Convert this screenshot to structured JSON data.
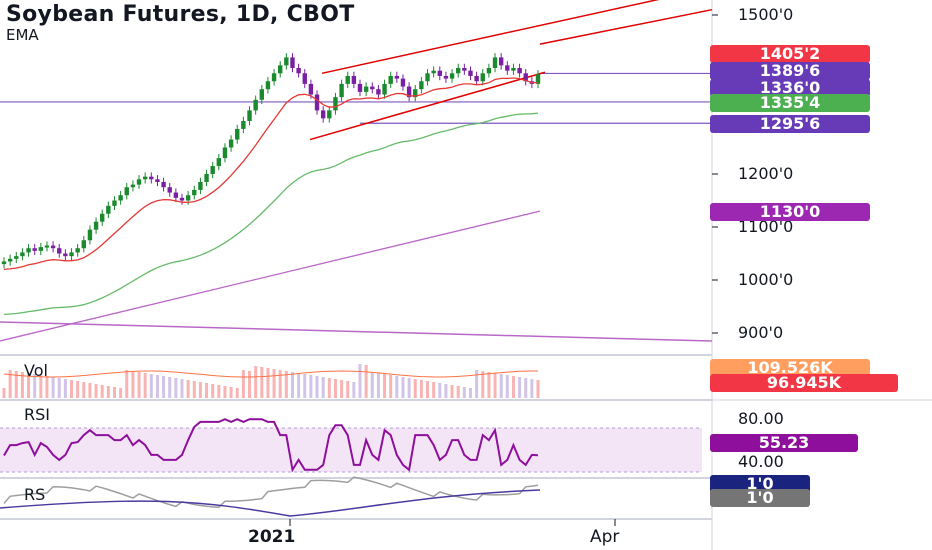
{
  "header": {
    "title": "Soybean Futures, 1D, CBOT",
    "subtitle": "EMA"
  },
  "colors": {
    "up": "#1b8a2e",
    "down": "#7b1fa2",
    "ema_fast": "#e53935",
    "ema_slow": "#66bb6a",
    "ema_long": "#ba68c8",
    "channel": "#e00000",
    "hline": "#7e57c2",
    "rsi_line": "#8e0f9c",
    "rs_line": "#9e9e9e",
    "rs_avg": "#4a3aa0"
  },
  "price_axis": {
    "ticks": [
      {
        "value": 1500,
        "label": "1500'0"
      },
      {
        "value": 1200,
        "label": "1200'0"
      },
      {
        "value": 1100,
        "label": "1100'0"
      },
      {
        "value": 1000,
        "label": "1000'0"
      },
      {
        "value": 900,
        "label": "900'0"
      }
    ]
  },
  "badges": [
    {
      "value": 1405.25,
      "label": "1405'2",
      "color": "#f23645"
    },
    {
      "value": 1389.75,
      "label": "1389'6",
      "color": "#673ab7"
    },
    {
      "value": 1336.0,
      "label": "1336'0",
      "color": "#673ab7"
    },
    {
      "value": 1335.5,
      "label": "1335'4",
      "color": "#4caf50"
    },
    {
      "value": 1295.75,
      "label": "1295'6",
      "color": "#673ab7"
    },
    {
      "value": 1130.0,
      "label": "1130'0",
      "color": "#9c27b0"
    }
  ],
  "volume_panel": {
    "label": "Vol",
    "badges": [
      {
        "label": "109.526K",
        "color": "#ff9e5e"
      },
      {
        "label": "96.945K",
        "color": "#f23645"
      }
    ]
  },
  "rsi_panel": {
    "label": "RSI",
    "ticks": [
      {
        "value": 80,
        "label": "80.00"
      },
      {
        "value": 40,
        "label": "40.00"
      }
    ],
    "badge": {
      "value": 55.23,
      "label": "55.23",
      "color": "#8e0f9c"
    }
  },
  "rs_panel": {
    "label": "RS",
    "badges": [
      {
        "label": "1'0",
        "color": "#1a237e"
      },
      {
        "label": "1'0",
        "color": "#757575"
      }
    ]
  },
  "time_axis": {
    "labels": [
      {
        "label": "2021",
        "bold": true
      },
      {
        "label": "Apr",
        "bold": false
      }
    ]
  },
  "chart_data": {
    "type": "candlestick",
    "title": "Soybean Futures, 1D, CBOT",
    "indicators": [
      "EMA",
      "Vol",
      "RSI",
      "RS"
    ],
    "ylim": [
      880,
      1530
    ],
    "last_price": 1389.75,
    "horizontal_levels": [
      1389.75,
      1336.0,
      1295.75
    ],
    "channel": {
      "upper_start": 1390,
      "upper_end": 1530,
      "lower_start": 1265,
      "lower_end": 1392
    },
    "ema_values": {
      "fast": 1405.25,
      "mid": 1335.5,
      "long": 1130.0
    },
    "rsi_last": 55.23,
    "volume_last": [
      "109.526K",
      "96.945K"
    ],
    "closes": [
      1035,
      1040,
      1045,
      1052,
      1060,
      1055,
      1062,
      1065,
      1060,
      1050,
      1045,
      1052,
      1060,
      1075,
      1095,
      1110,
      1125,
      1140,
      1150,
      1160,
      1175,
      1180,
      1190,
      1195,
      1190,
      1185,
      1175,
      1165,
      1155,
      1150,
      1160,
      1170,
      1185,
      1200,
      1215,
      1230,
      1250,
      1265,
      1285,
      1300,
      1320,
      1340,
      1360,
      1375,
      1390,
      1405,
      1420,
      1400,
      1390,
      1370,
      1350,
      1320,
      1305,
      1320,
      1345,
      1370,
      1385,
      1370,
      1355,
      1365,
      1360,
      1350,
      1370,
      1385,
      1380,
      1365,
      1345,
      1360,
      1375,
      1390,
      1395,
      1385,
      1380,
      1390,
      1400,
      1395,
      1385,
      1375,
      1390,
      1400,
      1420,
      1405,
      1395,
      1400,
      1390,
      1375,
      1370,
      1388
    ]
  }
}
